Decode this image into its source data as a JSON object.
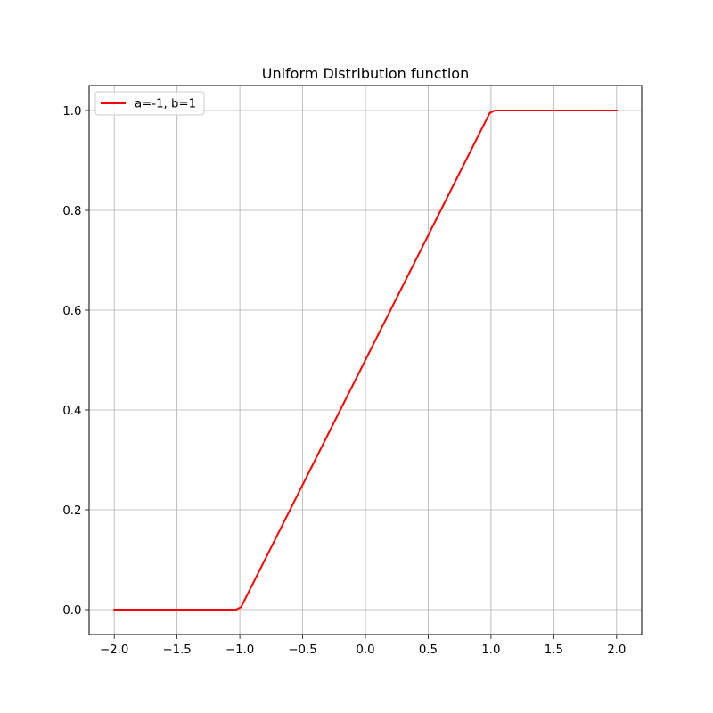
{
  "chart_data": {
    "type": "line",
    "title": "Uniform Distribution function",
    "xlabel": "",
    "ylabel": "",
    "xlim": [
      -2.2,
      2.2
    ],
    "ylim": [
      -0.05,
      1.05
    ],
    "grid": true,
    "legend_placement": "top-left",
    "x_ticks": [
      -2.0,
      -1.5,
      -1.0,
      -0.5,
      0.0,
      0.5,
      1.0,
      1.5,
      2.0
    ],
    "x_tick_labels": [
      "−2.0",
      "−1.5",
      "−1.0",
      "−0.5",
      "0.0",
      "0.5",
      "1.0",
      "1.5",
      "2.0"
    ],
    "y_ticks": [
      0.0,
      0.2,
      0.4,
      0.6,
      0.8,
      1.0
    ],
    "y_tick_labels": [
      "0.0",
      "0.2",
      "0.4",
      "0.6",
      "0.8",
      "1.0"
    ],
    "series": [
      {
        "name": "a=-1, b=1",
        "color": "#ff0000",
        "x": [
          -2.0,
          -1.03,
          -0.99,
          0.99,
          1.03,
          2.0
        ],
        "y": [
          0.0,
          0.0,
          0.005,
          0.995,
          1.0,
          1.0
        ]
      }
    ]
  }
}
